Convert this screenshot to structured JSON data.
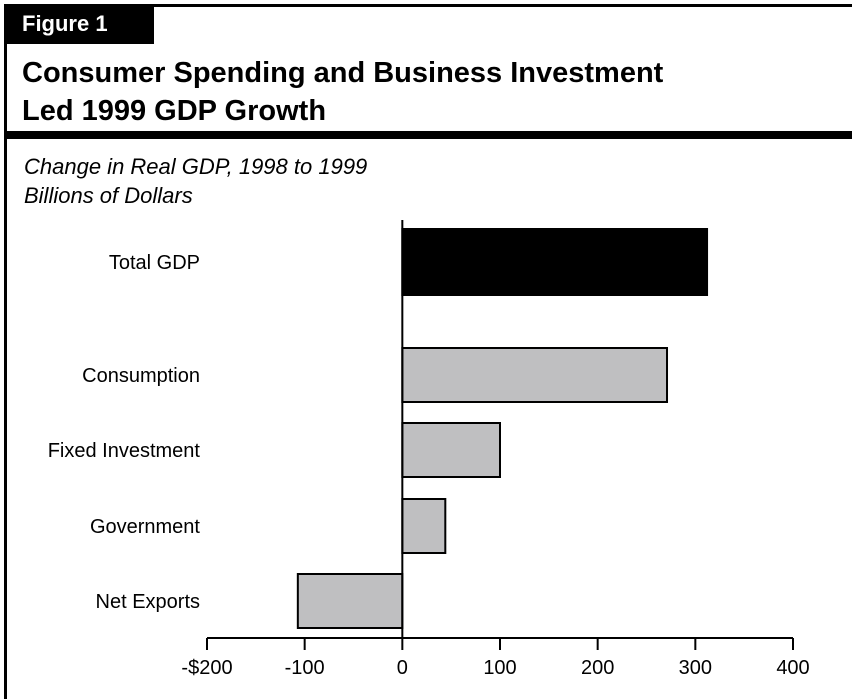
{
  "figure_label": "Figure 1",
  "title": "Consumer Spending and Business Investment\nLed 1999 GDP Growth",
  "subtitle": "Change in Real GDP, 1998 to 1999\nBillions of Dollars",
  "colors": {
    "highlight": "#000000",
    "bar": "#bfbfc1",
    "outline": "#000000"
  },
  "chart_data": {
    "type": "bar",
    "orientation": "horizontal",
    "categories": [
      "Total GDP",
      "Consumption",
      "Fixed Investment",
      "Government",
      "Net Exports"
    ],
    "values": [
      312,
      271,
      100,
      44,
      -107
    ],
    "highlight": [
      "Total GDP"
    ],
    "xlim": [
      -200,
      400
    ],
    "ticks": [
      -200,
      -100,
      0,
      100,
      200,
      300,
      400
    ],
    "tick_labels": [
      "-$200",
      "-100",
      "0",
      "100",
      "200",
      "300",
      "400"
    ],
    "grid": false,
    "xlabel": "",
    "ylabel": ""
  }
}
